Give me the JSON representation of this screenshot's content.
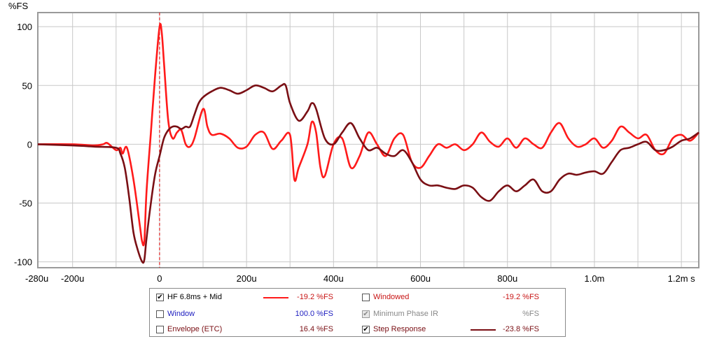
{
  "chart_data": {
    "type": "line",
    "ylabel": "%FS",
    "ylim": [
      -105,
      112
    ],
    "xlim": [
      -0.00028,
      0.00124
    ],
    "x_ticks": [
      {
        "v": -0.00028,
        "label": "-280u"
      },
      {
        "v": -0.0002,
        "label": "-200u"
      },
      {
        "v": 0,
        "label": "0"
      },
      {
        "v": 0.0002,
        "label": "200u"
      },
      {
        "v": 0.0004,
        "label": "400u"
      },
      {
        "v": 0.0006,
        "label": "600u"
      },
      {
        "v": 0.0008,
        "label": "800u"
      },
      {
        "v": 0.001,
        "label": "1.0m"
      },
      {
        "v": 0.0012,
        "label": "1.2m s"
      }
    ],
    "x_grid": [
      -0.00028,
      -0.0002,
      -0.0001,
      0,
      0.0001,
      0.0002,
      0.0003,
      0.0004,
      0.0005,
      0.0006,
      0.0007,
      0.0008,
      0.0009,
      0.001,
      0.0011,
      0.0012
    ],
    "y_ticks": [
      100,
      50,
      0,
      -50,
      -100
    ],
    "marker_x": 0,
    "series": [
      {
        "name": "HF 6.8ms + Mid",
        "color": "#ff1a1a",
        "points": [
          [
            -0.00028,
            0
          ],
          [
            -0.0002,
            0
          ],
          [
            -0.00015,
            -1
          ],
          [
            -0.00013,
            0
          ],
          [
            -0.00012,
            1
          ],
          [
            -0.0001,
            -5
          ],
          [
            -9e-05,
            -3
          ],
          [
            -8.5e-05,
            -8
          ],
          [
            -7.5e-05,
            -3
          ],
          [
            -6e-05,
            -30
          ],
          [
            -4.5e-05,
            -70
          ],
          [
            -4e-05,
            -83
          ],
          [
            -3.5e-05,
            -82
          ],
          [
            -3e-05,
            -40
          ],
          [
            -2e-05,
            10
          ],
          [
            -1e-05,
            60
          ],
          [
            0,
            100
          ],
          [
            5e-06,
            95
          ],
          [
            1e-05,
            70
          ],
          [
            2e-05,
            20
          ],
          [
            3e-05,
            5
          ],
          [
            4e-05,
            10
          ],
          [
            5e-05,
            12
          ],
          [
            6e-05,
            0
          ],
          [
            7e-05,
            -2
          ],
          [
            8e-05,
            5
          ],
          [
            0.0001,
            30
          ],
          [
            0.00011,
            15
          ],
          [
            0.00012,
            8
          ],
          [
            0.00014,
            9
          ],
          [
            0.00016,
            5
          ],
          [
            0.00018,
            -3
          ],
          [
            0.0002,
            -2
          ],
          [
            0.00022,
            8
          ],
          [
            0.00024,
            10
          ],
          [
            0.00026,
            -4
          ],
          [
            0.00028,
            3
          ],
          [
            0.0003,
            8
          ],
          [
            0.00031,
            -30
          ],
          [
            0.00032,
            -20
          ],
          [
            0.00034,
            0
          ],
          [
            0.00035,
            19
          ],
          [
            0.00036,
            10
          ],
          [
            0.00037,
            -20
          ],
          [
            0.00038,
            -27
          ],
          [
            0.0004,
            0
          ],
          [
            0.00042,
            5
          ],
          [
            0.00044,
            -20
          ],
          [
            0.00046,
            -10
          ],
          [
            0.00048,
            10
          ],
          [
            0.0005,
            0
          ],
          [
            0.00052,
            -10
          ],
          [
            0.00054,
            5
          ],
          [
            0.00056,
            8
          ],
          [
            0.00058,
            -15
          ],
          [
            0.0006,
            -20
          ],
          [
            0.00062,
            -10
          ],
          [
            0.00064,
            0
          ],
          [
            0.00066,
            -3
          ],
          [
            0.00068,
            0
          ],
          [
            0.0007,
            -5
          ],
          [
            0.00072,
            0
          ],
          [
            0.00074,
            10
          ],
          [
            0.00076,
            2
          ],
          [
            0.00078,
            -2
          ],
          [
            0.0008,
            5
          ],
          [
            0.00082,
            -3
          ],
          [
            0.00084,
            5
          ],
          [
            0.00086,
            0
          ],
          [
            0.00088,
            -3
          ],
          [
            0.0009,
            10
          ],
          [
            0.00092,
            18
          ],
          [
            0.00094,
            5
          ],
          [
            0.00096,
            -2
          ],
          [
            0.00098,
            0
          ],
          [
            0.001,
            5
          ],
          [
            0.00102,
            -3
          ],
          [
            0.00104,
            3
          ],
          [
            0.00106,
            15
          ],
          [
            0.00108,
            10
          ],
          [
            0.0011,
            5
          ],
          [
            0.00112,
            8
          ],
          [
            0.00114,
            -5
          ],
          [
            0.00116,
            -8
          ],
          [
            0.00118,
            5
          ],
          [
            0.0012,
            8
          ],
          [
            0.00122,
            3
          ],
          [
            0.00124,
            10
          ]
        ]
      },
      {
        "name": "Step Response",
        "color": "#7a0f14",
        "points": [
          [
            -0.00028,
            0
          ],
          [
            -0.0002,
            -1
          ],
          [
            -0.00015,
            -2
          ],
          [
            -0.0001,
            -3
          ],
          [
            -9e-05,
            -8
          ],
          [
            -8e-05,
            -20
          ],
          [
            -7e-05,
            -45
          ],
          [
            -6e-05,
            -75
          ],
          [
            -5e-05,
            -90
          ],
          [
            -4e-05,
            -100
          ],
          [
            -3.5e-05,
            -98
          ],
          [
            -3e-05,
            -80
          ],
          [
            -2e-05,
            -50
          ],
          [
            -1e-05,
            -25
          ],
          [
            0,
            -10
          ],
          [
            1e-05,
            5
          ],
          [
            2e-05,
            12
          ],
          [
            3e-05,
            15
          ],
          [
            4e-05,
            15
          ],
          [
            5e-05,
            13
          ],
          [
            6e-05,
            15
          ],
          [
            7e-05,
            15
          ],
          [
            8e-05,
            25
          ],
          [
            9e-05,
            35
          ],
          [
            0.0001,
            40
          ],
          [
            0.00012,
            45
          ],
          [
            0.00014,
            48
          ],
          [
            0.00016,
            46
          ],
          [
            0.00018,
            43
          ],
          [
            0.0002,
            46
          ],
          [
            0.00022,
            50
          ],
          [
            0.00024,
            48
          ],
          [
            0.00026,
            45
          ],
          [
            0.00028,
            50
          ],
          [
            0.00029,
            50
          ],
          [
            0.0003,
            35
          ],
          [
            0.00032,
            20
          ],
          [
            0.00034,
            28
          ],
          [
            0.00035,
            35
          ],
          [
            0.00036,
            30
          ],
          [
            0.00038,
            5
          ],
          [
            0.0004,
            0
          ],
          [
            0.00042,
            10
          ],
          [
            0.00044,
            18
          ],
          [
            0.00046,
            5
          ],
          [
            0.00048,
            -5
          ],
          [
            0.0005,
            -3
          ],
          [
            0.00052,
            -8
          ],
          [
            0.00054,
            -10
          ],
          [
            0.00056,
            -5
          ],
          [
            0.00058,
            -15
          ],
          [
            0.0006,
            -30
          ],
          [
            0.00062,
            -35
          ],
          [
            0.00064,
            -35
          ],
          [
            0.00066,
            -37
          ],
          [
            0.00068,
            -38
          ],
          [
            0.0007,
            -35
          ],
          [
            0.00072,
            -37
          ],
          [
            0.00074,
            -45
          ],
          [
            0.00076,
            -48
          ],
          [
            0.00078,
            -40
          ],
          [
            0.0008,
            -35
          ],
          [
            0.00082,
            -40
          ],
          [
            0.00084,
            -35
          ],
          [
            0.00086,
            -30
          ],
          [
            0.00088,
            -40
          ],
          [
            0.0009,
            -40
          ],
          [
            0.00092,
            -30
          ],
          [
            0.00094,
            -25
          ],
          [
            0.00096,
            -26
          ],
          [
            0.00098,
            -24
          ],
          [
            0.001,
            -23
          ],
          [
            0.00102,
            -25
          ],
          [
            0.00104,
            -15
          ],
          [
            0.00106,
            -5
          ],
          [
            0.00108,
            -3
          ],
          [
            0.0011,
            0
          ],
          [
            0.00112,
            2
          ],
          [
            0.00114,
            -5
          ],
          [
            0.00116,
            -5
          ],
          [
            0.00118,
            -2
          ],
          [
            0.0012,
            3
          ],
          [
            0.00122,
            5
          ],
          [
            0.00124,
            10
          ]
        ]
      }
    ]
  },
  "legend": {
    "hf": {
      "label": "HF 6.8ms + Mid",
      "value": "-19.2 %FS",
      "checked": "✔",
      "color": "#ff1a1a"
    },
    "window": {
      "label": "Window",
      "value": "100.0 %FS",
      "color": "#2020c0"
    },
    "envelope": {
      "label": "Envelope (ETC)",
      "value": "16.4 %FS",
      "color": "#7a0f14"
    },
    "windowed": {
      "label": "Windowed",
      "value": "-19.2 %FS",
      "color": "#c81414"
    },
    "minphase": {
      "label": "Minimum Phase IR",
      "value": "%FS",
      "checked": "✔",
      "color": "#888888"
    },
    "step": {
      "label": "Step Response",
      "value": "-23.8 %FS",
      "checked": "✔",
      "color": "#7a0f14"
    }
  }
}
